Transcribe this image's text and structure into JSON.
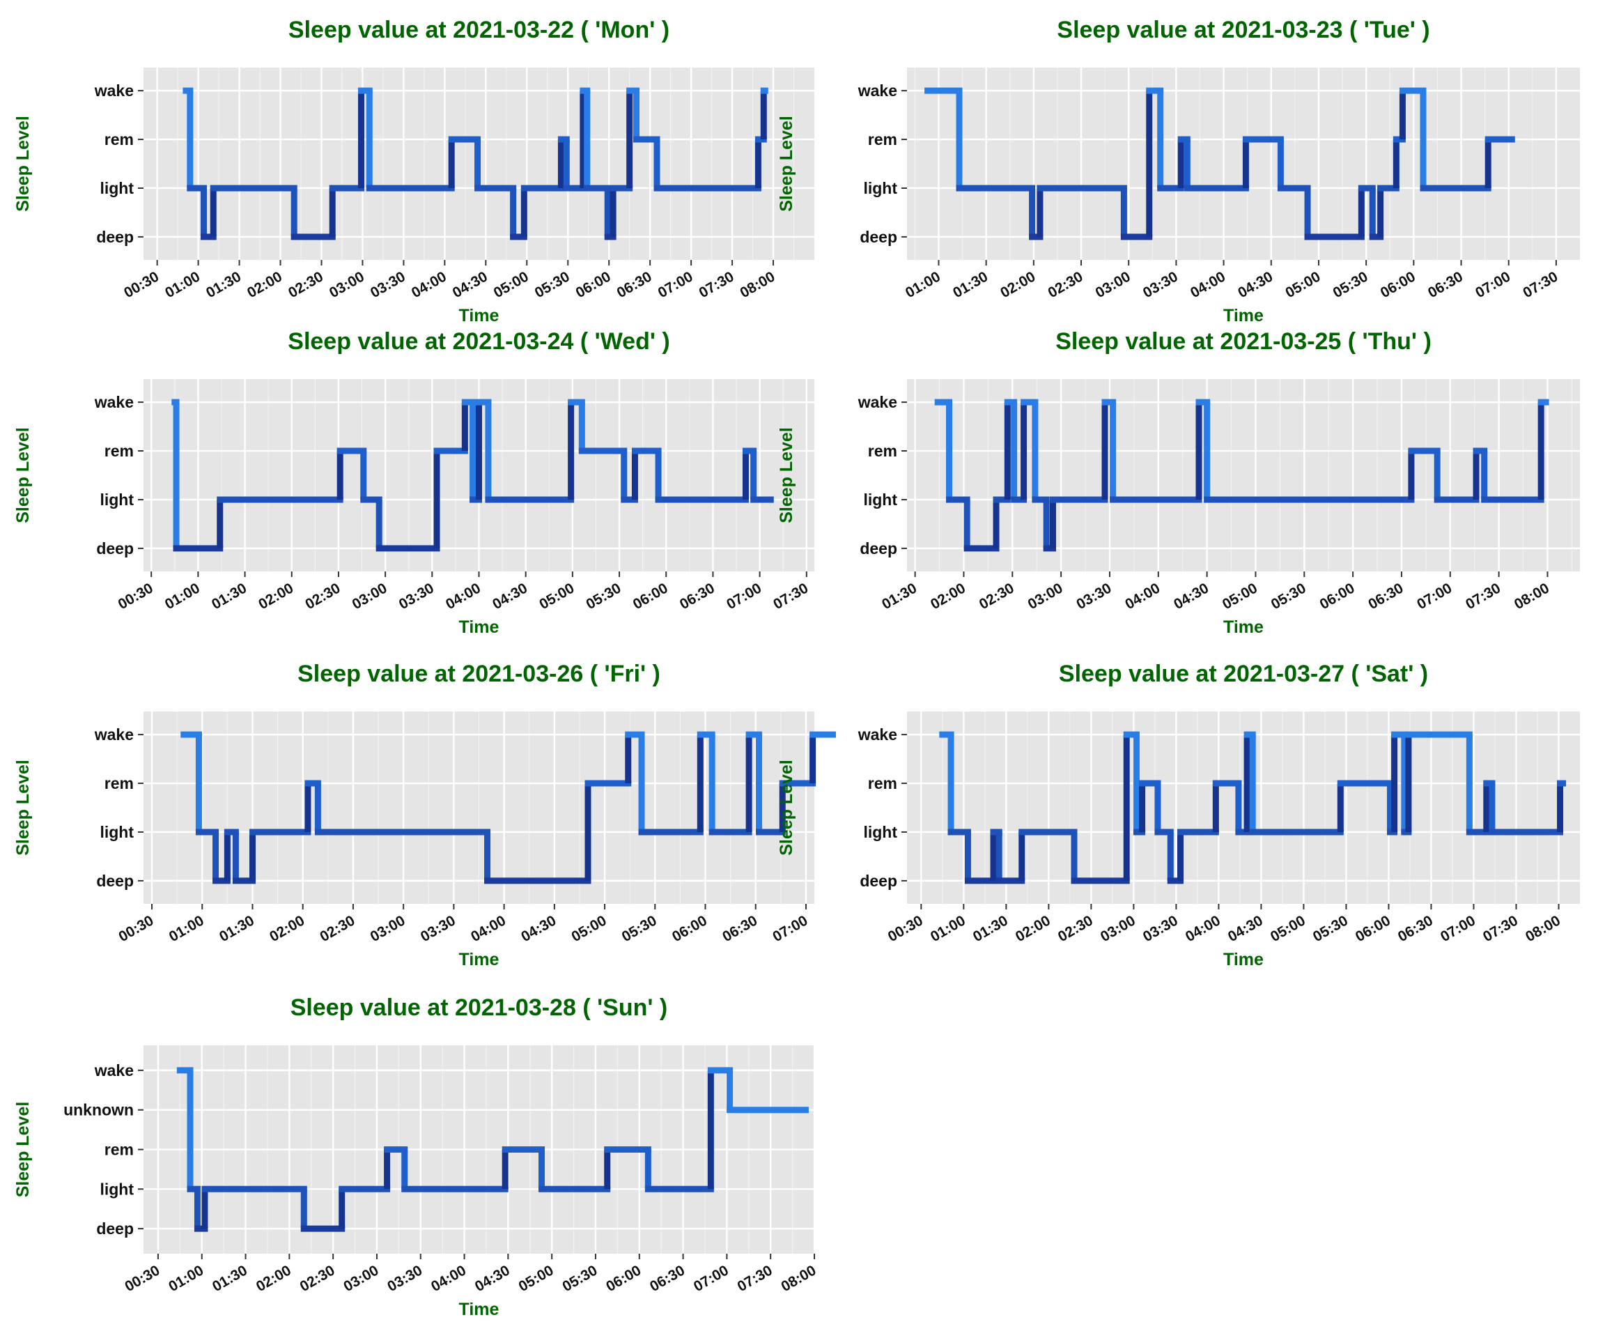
{
  "chart_data": [
    {
      "type": "line",
      "step": true,
      "title": "Sleep value at 2021-03-22 ( 'Mon' )",
      "xlabel": "Time",
      "ylabel": "Sleep Level",
      "levels": [
        "deep",
        "light",
        "rem",
        "wake"
      ],
      "xlim": [
        "00:20",
        "08:30"
      ],
      "x_ticks": [
        "00:30",
        "01:00",
        "01:30",
        "02:00",
        "02:30",
        "03:00",
        "03:30",
        "04:00",
        "04:30",
        "05:00",
        "05:30",
        "06:00",
        "06:30",
        "07:00",
        "07:30",
        "08:00"
      ],
      "points": [
        [
          "00:51",
          "wake"
        ],
        [
          "00:54",
          "light"
        ],
        [
          "01:04",
          "deep"
        ],
        [
          "01:11",
          "light"
        ],
        [
          "02:10",
          "deep"
        ],
        [
          "02:38",
          "light"
        ],
        [
          "02:59",
          "wake"
        ],
        [
          "03:05",
          "light"
        ],
        [
          "04:05",
          "rem"
        ],
        [
          "04:24",
          "light"
        ],
        [
          "04:50",
          "deep"
        ],
        [
          "04:58",
          "light"
        ],
        [
          "05:25",
          "rem"
        ],
        [
          "05:29",
          "light"
        ],
        [
          "05:41",
          "wake"
        ],
        [
          "05:44",
          "light"
        ],
        [
          "05:59",
          "deep"
        ],
        [
          "06:03",
          "light"
        ],
        [
          "06:15",
          "wake"
        ],
        [
          "06:20",
          "rem"
        ],
        [
          "06:35",
          "light"
        ],
        [
          "07:49",
          "rem"
        ],
        [
          "07:53",
          "wake"
        ],
        [
          "07:54",
          "wake"
        ]
      ]
    },
    {
      "type": "line",
      "step": true,
      "title": "Sleep value at 2021-03-23 ( 'Tue' )",
      "xlabel": "Time",
      "ylabel": "Sleep Level",
      "levels": [
        "deep",
        "light",
        "rem",
        "wake"
      ],
      "xlim": [
        "00:40",
        "07:45"
      ],
      "x_ticks": [
        "01:00",
        "01:30",
        "02:00",
        "02:30",
        "03:00",
        "03:30",
        "04:00",
        "04:30",
        "05:00",
        "05:30",
        "06:00",
        "06:30",
        "07:00",
        "07:30"
      ],
      "points": [
        [
          "00:53",
          "wake"
        ],
        [
          "01:13",
          "light"
        ],
        [
          "01:59",
          "deep"
        ],
        [
          "02:04",
          "light"
        ],
        [
          "02:57",
          "deep"
        ],
        [
          "03:13",
          "wake"
        ],
        [
          "03:20",
          "light"
        ],
        [
          "03:33",
          "rem"
        ],
        [
          "03:37",
          "light"
        ],
        [
          "04:14",
          "rem"
        ],
        [
          "04:36",
          "light"
        ],
        [
          "04:53",
          "deep"
        ],
        [
          "05:27",
          "light"
        ],
        [
          "05:34",
          "deep"
        ],
        [
          "05:39",
          "light"
        ],
        [
          "05:49",
          "rem"
        ],
        [
          "05:53",
          "wake"
        ],
        [
          "06:06",
          "light"
        ],
        [
          "06:47",
          "rem"
        ],
        [
          "07:02",
          "rem"
        ]
      ]
    },
    {
      "type": "line",
      "step": true,
      "title": "Sleep value at 2021-03-24 ( 'Wed' )",
      "xlabel": "Time",
      "ylabel": "Sleep Level",
      "levels": [
        "deep",
        "light",
        "rem",
        "wake"
      ],
      "xlim": [
        "00:25",
        "07:35"
      ],
      "x_ticks": [
        "00:30",
        "01:00",
        "01:30",
        "02:00",
        "02:30",
        "03:00",
        "03:30",
        "04:00",
        "04:30",
        "05:00",
        "05:30",
        "06:00",
        "06:30",
        "07:00",
        "07:30"
      ],
      "points": [
        [
          "00:45",
          "wake"
        ],
        [
          "00:46",
          "deep"
        ],
        [
          "01:14",
          "light"
        ],
        [
          "02:31",
          "rem"
        ],
        [
          "02:46",
          "light"
        ],
        [
          "02:56",
          "deep"
        ],
        [
          "03:33",
          "rem"
        ],
        [
          "03:51",
          "wake"
        ],
        [
          "03:56",
          "light"
        ],
        [
          "04:00",
          "wake"
        ],
        [
          "04:06",
          "light"
        ],
        [
          "04:59",
          "wake"
        ],
        [
          "05:06",
          "rem"
        ],
        [
          "05:33",
          "light"
        ],
        [
          "05:40",
          "rem"
        ],
        [
          "05:55",
          "light"
        ],
        [
          "06:51",
          "rem"
        ],
        [
          "06:56",
          "light"
        ],
        [
          "07:07",
          "light"
        ]
      ]
    },
    {
      "type": "line",
      "step": true,
      "title": "Sleep value at 2021-03-25 ( 'Thu' )",
      "xlabel": "Time",
      "ylabel": "Sleep Level",
      "levels": [
        "deep",
        "light",
        "rem",
        "wake"
      ],
      "xlim": [
        "01:25",
        "08:20"
      ],
      "x_ticks": [
        "01:30",
        "02:00",
        "02:30",
        "03:00",
        "03:30",
        "04:00",
        "04:30",
        "05:00",
        "05:30",
        "06:00",
        "06:30",
        "07:00",
        "07:30",
        "08:00"
      ],
      "points": [
        [
          "01:44",
          "wake"
        ],
        [
          "01:51",
          "light"
        ],
        [
          "02:02",
          "deep"
        ],
        [
          "02:20",
          "light"
        ],
        [
          "02:27",
          "wake"
        ],
        [
          "02:31",
          "light"
        ],
        [
          "02:37",
          "wake"
        ],
        [
          "02:44",
          "light"
        ],
        [
          "02:51",
          "deep"
        ],
        [
          "02:55",
          "light"
        ],
        [
          "03:27",
          "wake"
        ],
        [
          "03:32",
          "light"
        ],
        [
          "04:25",
          "wake"
        ],
        [
          "04:30",
          "light"
        ],
        [
          "06:36",
          "rem"
        ],
        [
          "06:52",
          "light"
        ],
        [
          "07:16",
          "rem"
        ],
        [
          "07:21",
          "light"
        ],
        [
          "07:56",
          "wake"
        ],
        [
          "07:59",
          "wake"
        ]
      ]
    },
    {
      "type": "line",
      "step": true,
      "title": "Sleep value at 2021-03-26 ( 'Fri' )",
      "xlabel": "Time",
      "ylabel": "Sleep Level",
      "levels": [
        "deep",
        "light",
        "rem",
        "wake"
      ],
      "xlim": [
        "00:25",
        "07:05"
      ],
      "x_ticks": [
        "00:30",
        "01:00",
        "01:30",
        "02:00",
        "02:30",
        "03:00",
        "03:30",
        "04:00",
        "04:30",
        "05:00",
        "05:30",
        "06:00",
        "06:30",
        "07:00"
      ],
      "points": [
        [
          "00:49",
          "wake"
        ],
        [
          "00:58",
          "light"
        ],
        [
          "01:08",
          "deep"
        ],
        [
          "01:15",
          "light"
        ],
        [
          "01:20",
          "deep"
        ],
        [
          "01:30",
          "light"
        ],
        [
          "02:03",
          "rem"
        ],
        [
          "02:09",
          "light"
        ],
        [
          "03:50",
          "deep"
        ],
        [
          "04:50",
          "rem"
        ],
        [
          "05:14",
          "wake"
        ],
        [
          "05:22",
          "light"
        ],
        [
          "05:57",
          "wake"
        ],
        [
          "06:04",
          "light"
        ],
        [
          "06:26",
          "wake"
        ],
        [
          "06:32",
          "light"
        ],
        [
          "06:46",
          "rem"
        ],
        [
          "07:04",
          "wake"
        ],
        [
          "07:16",
          "wake"
        ]
      ]
    },
    {
      "type": "line",
      "step": true,
      "title": "Sleep value at 2021-03-27 ( 'Sat' )",
      "xlabel": "Time",
      "ylabel": "Sleep Level",
      "levels": [
        "deep",
        "light",
        "rem",
        "wake"
      ],
      "xlim": [
        "00:20",
        "08:15"
      ],
      "x_ticks": [
        "00:30",
        "01:00",
        "01:30",
        "02:00",
        "02:30",
        "03:00",
        "03:30",
        "04:00",
        "04:30",
        "05:00",
        "05:30",
        "06:00",
        "06:30",
        "07:00",
        "07:30",
        "08:00"
      ],
      "points": [
        [
          "00:45",
          "wake"
        ],
        [
          "00:51",
          "light"
        ],
        [
          "01:03",
          "deep"
        ],
        [
          "01:21",
          "light"
        ],
        [
          "01:25",
          "deep"
        ],
        [
          "01:41",
          "light"
        ],
        [
          "02:18",
          "deep"
        ],
        [
          "02:55",
          "wake"
        ],
        [
          "03:02",
          "light"
        ],
        [
          "03:06",
          "rem"
        ],
        [
          "03:17",
          "light"
        ],
        [
          "03:26",
          "deep"
        ],
        [
          "03:33",
          "light"
        ],
        [
          "03:58",
          "rem"
        ],
        [
          "04:14",
          "light"
        ],
        [
          "04:20",
          "wake"
        ],
        [
          "04:24",
          "light"
        ],
        [
          "05:26",
          "rem"
        ],
        [
          "06:01",
          "light"
        ],
        [
          "06:04",
          "wake"
        ],
        [
          "06:11",
          "light"
        ],
        [
          "06:14",
          "wake"
        ],
        [
          "06:57",
          "light"
        ],
        [
          "07:09",
          "rem"
        ],
        [
          "07:13",
          "light"
        ],
        [
          "08:01",
          "rem"
        ],
        [
          "08:03",
          "rem"
        ]
      ]
    },
    {
      "type": "line",
      "step": true,
      "title": "Sleep value at 2021-03-28 ( 'Sun' )",
      "xlabel": "Time",
      "ylabel": "Sleep Level",
      "levels": [
        "deep",
        "light",
        "rem",
        "unknown",
        "wake"
      ],
      "xlim": [
        "00:20",
        "08:00"
      ],
      "x_ticks": [
        "00:30",
        "01:00",
        "01:30",
        "02:00",
        "02:30",
        "03:00",
        "03:30",
        "04:00",
        "04:30",
        "05:00",
        "05:30",
        "06:00",
        "06:30",
        "07:00",
        "07:30",
        "08:00"
      ],
      "points": [
        [
          "00:45",
          "wake"
        ],
        [
          "00:52",
          "light"
        ],
        [
          "00:57",
          "deep"
        ],
        [
          "01:02",
          "light"
        ],
        [
          "02:10",
          "deep"
        ],
        [
          "02:36",
          "light"
        ],
        [
          "03:07",
          "rem"
        ],
        [
          "03:19",
          "light"
        ],
        [
          "04:28",
          "rem"
        ],
        [
          "04:53",
          "light"
        ],
        [
          "05:38",
          "rem"
        ],
        [
          "06:06",
          "light"
        ],
        [
          "06:49",
          "wake"
        ],
        [
          "07:02",
          "unknown"
        ],
        [
          "07:54",
          "unknown"
        ]
      ]
    }
  ]
}
